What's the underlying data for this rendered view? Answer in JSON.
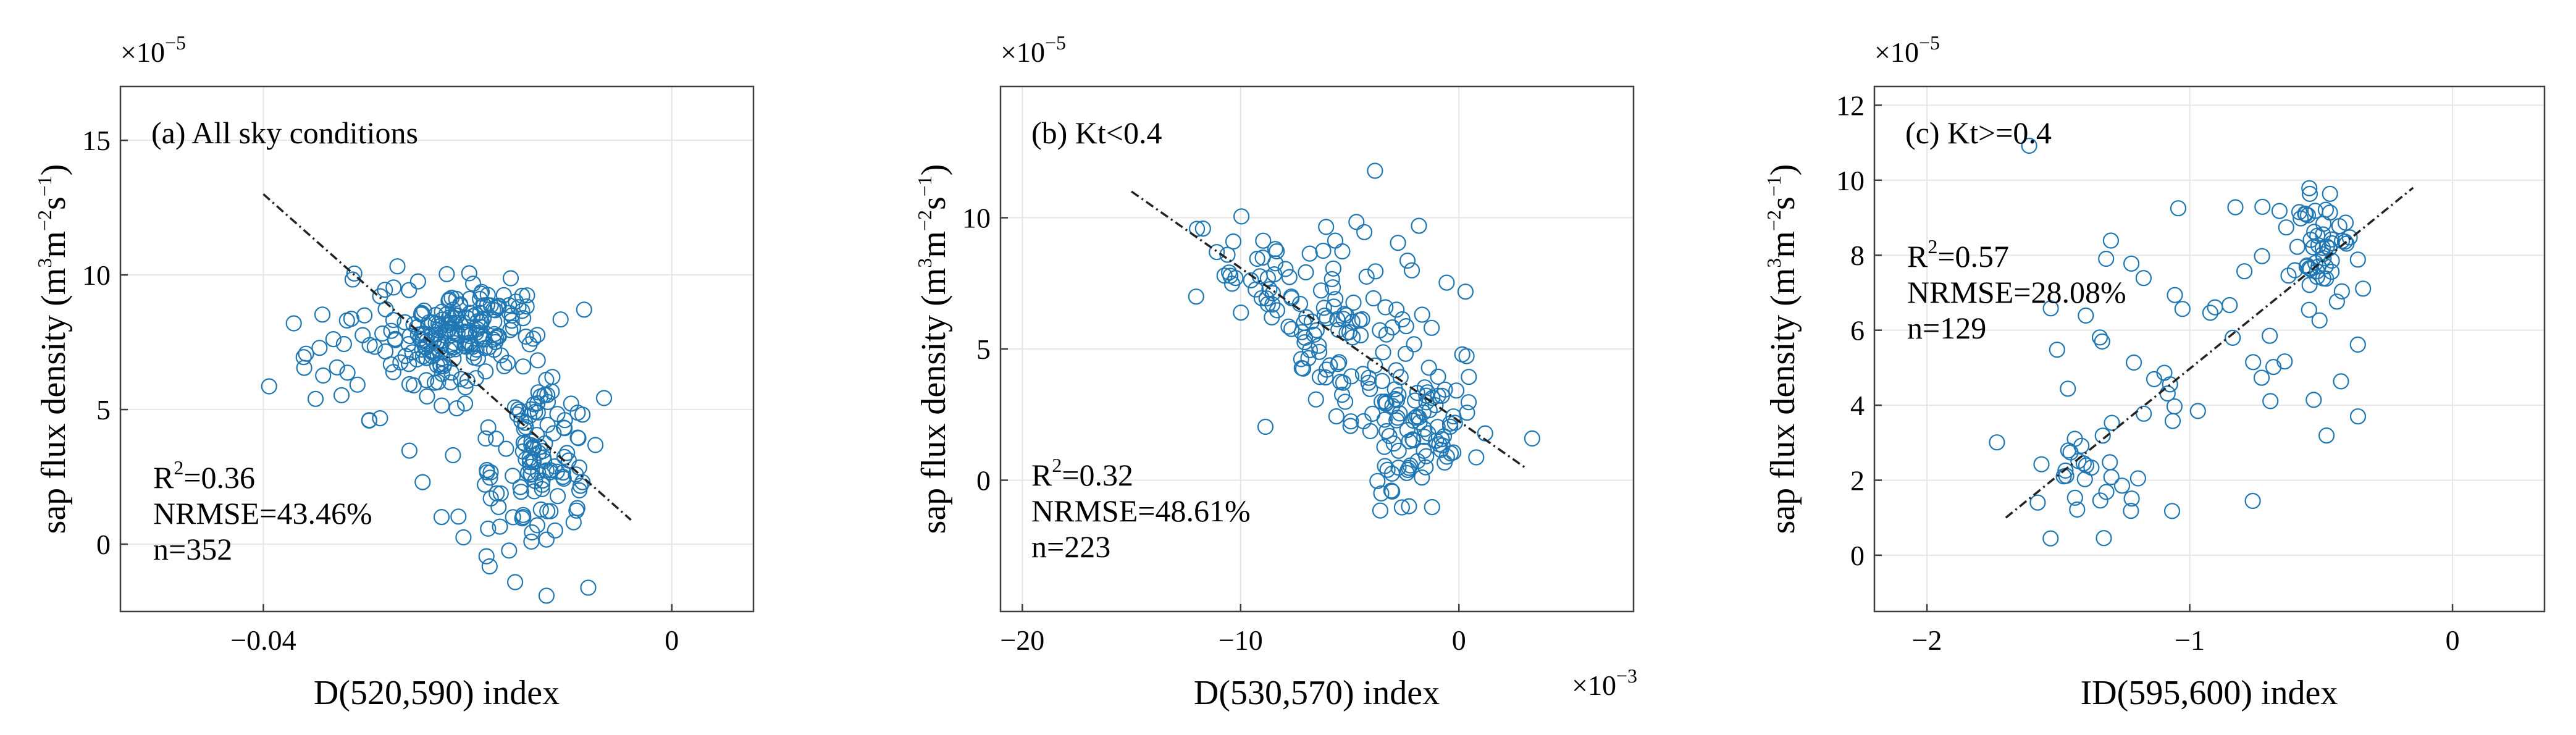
{
  "chart_data": [
    {
      "type": "scatter",
      "panel_label": "(a) All sky conditions",
      "xlabel": "D(520,590) index",
      "ylabel_prefix": "sap flux density (m",
      "ylabel_sup1": "3",
      "ylabel_mid": "m",
      "ylabel_sup2": "−2",
      "ylabel_mid2": "s",
      "ylabel_sup3": "−1",
      "ylabel_suffix": ")",
      "y_exponent_base": "×10",
      "y_exponent_power": "−5",
      "x_exponent_base": "",
      "x_exponent_power": "",
      "xlim": [
        -0.054,
        0.008
      ],
      "ylim": [
        -2.5,
        17
      ],
      "xticks": [
        -0.04,
        0
      ],
      "xtick_labels": [
        "−0.04",
        "0"
      ],
      "yticks": [
        0,
        5,
        10,
        15
      ],
      "ytick_labels": [
        "0",
        "5",
        "10",
        "15"
      ],
      "grid": true,
      "stats": {
        "r2_prefix": "R",
        "r2_sup": "2",
        "r2_value": "=0.36",
        "nrmse": "NRMSE=43.46%",
        "n": "n=352"
      },
      "fit_line": {
        "x": [
          -0.04,
          -0.004
        ],
        "y": [
          13,
          0.9
        ]
      },
      "clusters": [
        {
          "cx": -0.022,
          "cy": 7.6,
          "sx": 0.0028,
          "sy": 1.0,
          "n": 120
        },
        {
          "cx": -0.013,
          "cy": 3.0,
          "sx": 0.0026,
          "sy": 1.8,
          "n": 120
        },
        {
          "cx": -0.017,
          "cy": 8.2,
          "sx": 0.003,
          "sy": 1.1,
          "n": 60
        },
        {
          "cx": -0.028,
          "cy": 7.2,
          "sx": 0.004,
          "sy": 1.6,
          "n": 35
        },
        {
          "cx": -0.035,
          "cy": 6.0,
          "sx": 0.003,
          "sy": 0.9,
          "n": 10
        },
        {
          "cx": -0.02,
          "cy": 3.2,
          "sx": 0.003,
          "sy": 1.3,
          "n": 7
        }
      ],
      "n_points": 352
    },
    {
      "type": "scatter",
      "panel_label": "(b) Kt<0.4",
      "xlabel": "D(530,570) index",
      "ylabel_prefix": "sap flux density (m",
      "ylabel_sup1": "3",
      "ylabel_mid": "m",
      "ylabel_sup2": "−2",
      "ylabel_mid2": "s",
      "ylabel_sup3": "−1",
      "ylabel_suffix": ")",
      "y_exponent_base": "×10",
      "y_exponent_power": "−5",
      "x_exponent_base": "×10",
      "x_exponent_power": "−3",
      "xlim": [
        -21,
        8
      ],
      "ylim": [
        -5,
        15
      ],
      "xticks": [
        -20,
        -10,
        0
      ],
      "xtick_labels": [
        "−20",
        "−10",
        "0"
      ],
      "yticks": [
        0,
        5,
        10
      ],
      "ytick_labels": [
        "0",
        "5",
        "10"
      ],
      "grid": true,
      "stats": {
        "r2_prefix": "R",
        "r2_sup": "2",
        "r2_value": "=0.32",
        "nrmse": "NRMSE=48.61%",
        "n": "n=223"
      },
      "fit_line": {
        "x": [
          -15,
          3
        ],
        "y": [
          11,
          0.5
        ]
      },
      "clusters": [
        {
          "cx": -5.5,
          "cy": 6.5,
          "sx": 2.2,
          "sy": 1.7,
          "n": 85
        },
        {
          "cx": -2.0,
          "cy": 2.2,
          "sx": 1.6,
          "sy": 1.4,
          "n": 95
        },
        {
          "cx": -9.0,
          "cy": 7.8,
          "sx": 1.5,
          "sy": 0.8,
          "n": 25
        },
        {
          "cx": -3.5,
          "cy": 4.5,
          "sx": 3.0,
          "sy": 2.5,
          "n": 18
        }
      ],
      "n_points": 223
    },
    {
      "type": "scatter",
      "panel_label": "(c) Kt>=0.4",
      "xlabel": "ID(595,600) index",
      "ylabel_prefix": "sap flux density (m",
      "ylabel_sup1": "3",
      "ylabel_mid": "m",
      "ylabel_sup2": "−2",
      "ylabel_mid2": "s",
      "ylabel_sup3": "−1",
      "ylabel_suffix": ")",
      "y_exponent_base": "×10",
      "y_exponent_power": "−5",
      "x_exponent_base": "",
      "x_exponent_power": "",
      "xlim": [
        -2.2,
        0.35
      ],
      "ylim": [
        -1.5,
        12.5
      ],
      "xticks": [
        -2,
        -1,
        0
      ],
      "xtick_labels": [
        "−2",
        "−1",
        "0"
      ],
      "yticks": [
        0,
        2,
        4,
        6,
        8,
        10,
        12
      ],
      "ytick_labels": [
        "0",
        "2",
        "4",
        "6",
        "8",
        "10",
        "12"
      ],
      "grid": true,
      "stats": {
        "r2_prefix": "R",
        "r2_sup": "2",
        "r2_value": "=0.57",
        "nrmse": "NRMSE=28.08%",
        "n": "n=129"
      },
      "fit_line": {
        "x": [
          -1.7,
          -0.15
        ],
        "y": [
          1.0,
          9.8
        ]
      },
      "clusters": [
        {
          "cx": -0.5,
          "cy": 8.3,
          "sx": 0.07,
          "sy": 0.75,
          "n": 55
        },
        {
          "cx": -1.05,
          "cy": 5.5,
          "sx": 0.35,
          "sy": 2.0,
          "n": 50
        },
        {
          "cx": -1.35,
          "cy": 1.8,
          "sx": 0.12,
          "sy": 0.7,
          "n": 24
        }
      ],
      "n_points": 129
    }
  ]
}
